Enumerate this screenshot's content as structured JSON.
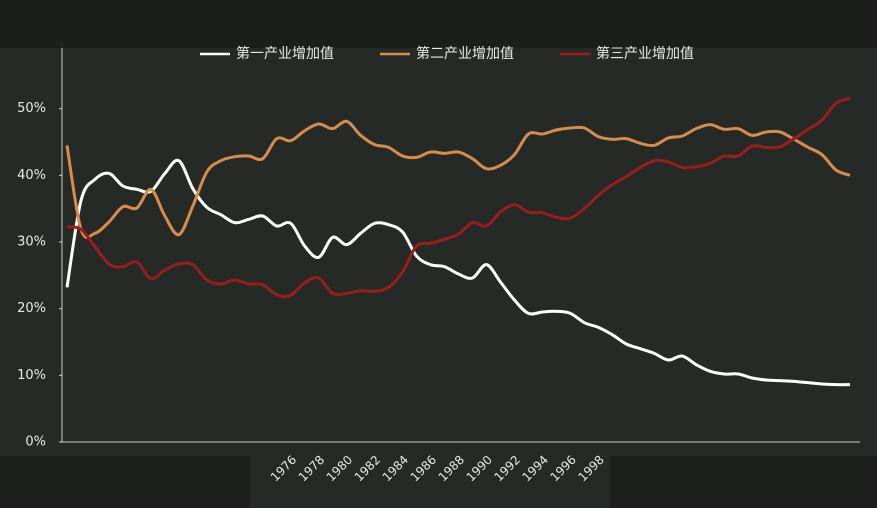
{
  "chart_data": {
    "type": "line",
    "categories": [
      null,
      null,
      null,
      null,
      null,
      null,
      null,
      null,
      null,
      null,
      null,
      null,
      null,
      null,
      null,
      null,
      "1976",
      null,
      "1978",
      null,
      "1980",
      null,
      "1982",
      null,
      "1984",
      null,
      "1986",
      null,
      "1988",
      null,
      "1990",
      null,
      "1992",
      null,
      "1994",
      null,
      "1996",
      null,
      "1998",
      null,
      null,
      null,
      null,
      null,
      null,
      null,
      null,
      null,
      null,
      null,
      null,
      null,
      null,
      null,
      null,
      null,
      null
    ],
    "series": [
      {
        "name": "第一产业增加值",
        "color": "#ffffff",
        "values": [
          23.2,
          36.2,
          39.4,
          40.3,
          38.4,
          37.9,
          37.6,
          40.3,
          42.2,
          38.0,
          35.2,
          34.1,
          32.9,
          33.4,
          33.9,
          32.4,
          32.8,
          29.4,
          27.7,
          30.7,
          29.6,
          31.3,
          32.8,
          32.6,
          31.5,
          27.9,
          26.6,
          26.3,
          25.2,
          24.6,
          26.6,
          24.0,
          21.3,
          19.3,
          19.5,
          19.6,
          19.3,
          17.9,
          17.2,
          16.1,
          14.7,
          14.0,
          13.3,
          12.3,
          12.9,
          11.6,
          10.6,
          10.2,
          10.2,
          9.6,
          9.3,
          9.2,
          9.1,
          8.9,
          8.7,
          8.6,
          8.6
        ]
      },
      {
        "name": "第二产业增加值",
        "color": "#d98b4a",
        "values": [
          44.5,
          31.9,
          31.3,
          33.0,
          35.3,
          35.1,
          37.9,
          33.9,
          31.1,
          35.4,
          40.5,
          42.2,
          42.8,
          42.9,
          42.5,
          45.5,
          45.2,
          46.7,
          47.7,
          47.0,
          48.1,
          46.0,
          44.6,
          44.2,
          42.9,
          42.7,
          43.5,
          43.3,
          43.5,
          42.5,
          41.0,
          41.5,
          43.1,
          46.2,
          46.2,
          46.8,
          47.1,
          47.1,
          45.8,
          45.4,
          45.5,
          44.8,
          44.5,
          45.6,
          45.9,
          47.0,
          47.6,
          46.9,
          47.0,
          46.0,
          46.5,
          46.5,
          45.4,
          44.2,
          43.1,
          40.8,
          40.0
        ]
      },
      {
        "name": "第三产业增加值",
        "color": "#9b1c1c",
        "values": [
          32.3,
          31.9,
          29.3,
          26.7,
          26.3,
          27.0,
          24.5,
          25.8,
          26.7,
          26.6,
          24.3,
          23.7,
          24.3,
          23.7,
          23.6,
          22.1,
          22.0,
          23.9,
          24.6,
          22.3,
          22.3,
          22.7,
          22.6,
          23.2,
          25.5,
          29.4,
          29.8,
          30.4,
          31.2,
          32.9,
          32.4,
          34.5,
          35.6,
          34.5,
          34.4,
          33.7,
          33.6,
          35.0,
          37.0,
          38.6,
          39.8,
          41.2,
          42.2,
          42.0,
          41.2,
          41.3,
          41.8,
          42.9,
          42.9,
          44.4,
          44.2,
          44.3,
          45.5,
          46.9,
          48.3,
          50.8,
          51.6
        ]
      }
    ],
    "ylim": [
      0,
      60
    ],
    "yticks": [
      {
        "value": 0,
        "label": "0%"
      },
      {
        "value": 10,
        "label": "10%"
      },
      {
        "value": 20,
        "label": "20%"
      },
      {
        "value": 30,
        "label": "30%"
      },
      {
        "value": 40,
        "label": "40%"
      },
      {
        "value": 50,
        "label": "50%"
      }
    ],
    "legend": "top"
  }
}
